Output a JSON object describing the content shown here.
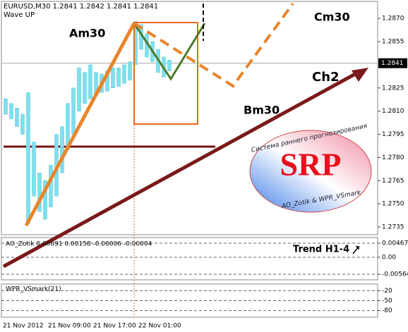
{
  "chart_data": [
    {
      "type": "range_bar",
      "title": "EURUSD,M30  1.2841 1.2842 1.2841 1.2841",
      "subtitle": "Wave UP",
      "categories": [
        "21 Nov 2012",
        null,
        null,
        null,
        null,
        null,
        null,
        null,
        "21 Nov 09:00",
        null,
        null,
        null,
        null,
        null,
        null,
        null,
        "21 Nov 17:00",
        null,
        null,
        null,
        null,
        null,
        null,
        null,
        "22 Nov 01:00",
        null,
        null,
        null,
        null,
        null
      ],
      "low": [
        1.2808,
        1.2805,
        1.28,
        1.2795,
        1.2737,
        1.2755,
        1.2745,
        1.274,
        1.2748,
        1.2755,
        1.277,
        1.2785,
        1.2795,
        1.281,
        1.2815,
        1.2818,
        1.282,
        1.2822,
        1.2823,
        1.2825,
        1.2826,
        1.2828,
        1.283,
        1.284,
        1.285,
        1.2845,
        1.2842,
        1.2835,
        1.2832,
        1.2836
      ],
      "high": [
        1.2818,
        1.2815,
        1.2812,
        1.2808,
        1.2822,
        1.279,
        1.277,
        1.2765,
        1.2775,
        1.2795,
        1.28,
        1.2815,
        1.2825,
        1.2838,
        1.2835,
        1.284,
        1.2835,
        1.2834,
        1.2836,
        1.2838,
        1.2838,
        1.284,
        1.2842,
        1.2868,
        1.2866,
        1.286,
        1.2855,
        1.285,
        1.2845,
        1.2843
      ],
      "color": "#7fdff0",
      "last_price": 1.2841,
      "level": 1.2787,
      "level_color": "#7a1010",
      "ylim": [
        1.273,
        1.2881
      ],
      "yticks": [
        {
          "value": 1.287,
          "label": "1.2870"
        },
        1.2855,
        1.2825,
        {
          "value": 1.281,
          "label": "1.2810"
        },
        1.2795,
        {
          "value": 1.278,
          "label": "1.2780"
        },
        1.2765,
        {
          "value": 1.275,
          "label": "1.2750"
        },
        1.2735
      ],
      "annotations": [
        "Am30",
        "Bm30",
        "Cm30",
        "Ch2"
      ],
      "logo": {
        "title": "SRP",
        "top_text": "Система раннего прогнозирования",
        "bottom_text": "AO_Zotik & WPR_VSmark"
      }
    },
    {
      "type": "indicator",
      "title": "AO_Zotik 0.00091 0.00158 -0.00006 -0.00004",
      "note": "Trend H1-4",
      "ylim": [
        -0.00747,
        0.00654
      ],
      "yticks": [
        0.00467,
        {
          "value": 0,
          "label": "0.00"
        },
        -0.00564
      ]
    },
    {
      "type": "indicator",
      "title": "WPR_VSmark(21)",
      "ylim": [
        -100,
        0
      ],
      "yticks": [
        -20,
        -50,
        -80
      ]
    }
  ]
}
